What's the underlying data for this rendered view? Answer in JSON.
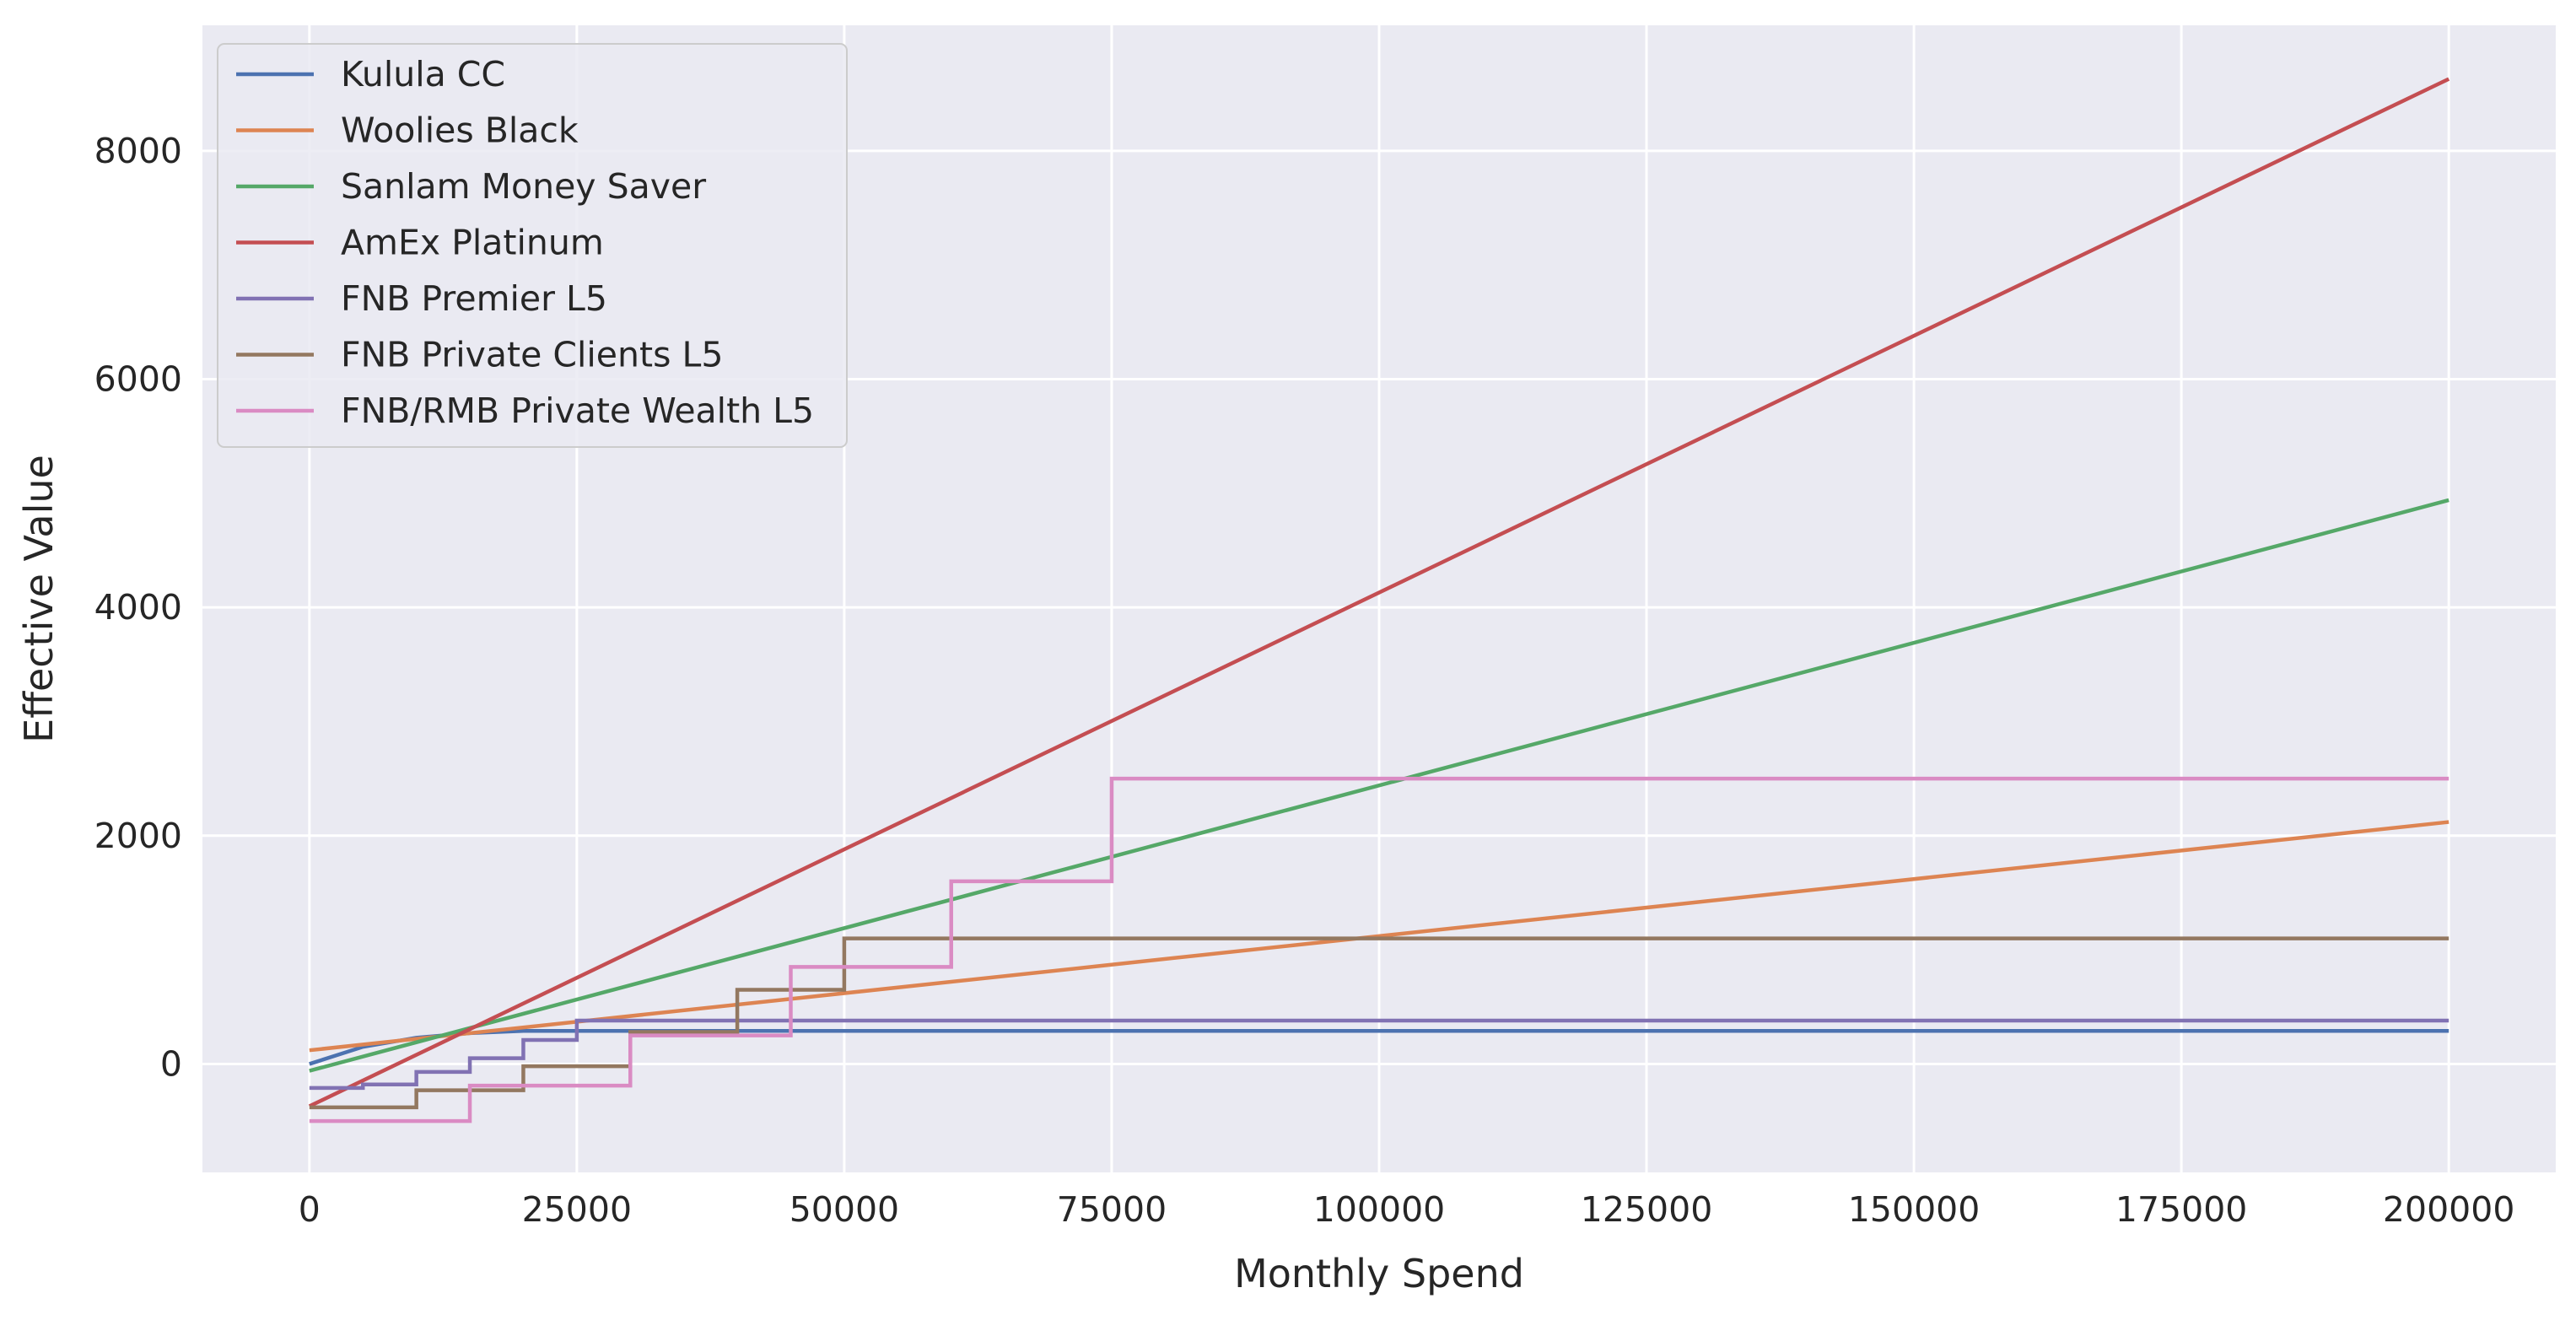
{
  "chart_data": {
    "type": "line",
    "title": "",
    "xlabel": "Monthly Spend",
    "ylabel": "Effective Value",
    "xlim": [
      -10000,
      210000
    ],
    "ylim": [
      -950,
      9100
    ],
    "xticks": [
      0,
      25000,
      50000,
      75000,
      100000,
      125000,
      150000,
      175000,
      200000
    ],
    "yticks": [
      0,
      2000,
      4000,
      6000,
      8000
    ],
    "grid": true,
    "background": "#eaeaf2",
    "legend_position": "top-left",
    "series": [
      {
        "name": "Kulula CC",
        "color": "#4c72b0",
        "points": [
          [
            0,
            0
          ],
          [
            5000,
            150
          ],
          [
            10000,
            230
          ],
          [
            15000,
            270
          ],
          [
            20000,
            290
          ],
          [
            200000,
            290
          ]
        ]
      },
      {
        "name": "Woolies Black",
        "color": "#dd8452",
        "points": [
          [
            0,
            120
          ],
          [
            200000,
            2120
          ]
        ]
      },
      {
        "name": "Sanlam Money Saver",
        "color": "#55a868",
        "points": [
          [
            0,
            -60
          ],
          [
            200000,
            4940
          ]
        ]
      },
      {
        "name": "AmEx Platinum",
        "color": "#c44e52",
        "points": [
          [
            0,
            -370
          ],
          [
            200000,
            8630
          ]
        ]
      },
      {
        "name": "FNB Premier L5",
        "color": "#8172b3",
        "points": [
          [
            0,
            -210
          ],
          [
            5000,
            -210
          ],
          [
            5000,
            -180
          ],
          [
            10000,
            -180
          ],
          [
            10000,
            -70
          ],
          [
            15000,
            -70
          ],
          [
            15000,
            50
          ],
          [
            20000,
            50
          ],
          [
            20000,
            210
          ],
          [
            25000,
            210
          ],
          [
            25000,
            380
          ],
          [
            200000,
            380
          ]
        ]
      },
      {
        "name": "FNB Private Clients L5",
        "color": "#937860",
        "points": [
          [
            0,
            -380
          ],
          [
            10000,
            -380
          ],
          [
            10000,
            -230
          ],
          [
            20000,
            -230
          ],
          [
            20000,
            -20
          ],
          [
            30000,
            -20
          ],
          [
            30000,
            280
          ],
          [
            40000,
            280
          ],
          [
            40000,
            650
          ],
          [
            50000,
            650
          ],
          [
            50000,
            1100
          ],
          [
            200000,
            1100
          ]
        ]
      },
      {
        "name": "FNB/RMB Private Wealth L5",
        "color": "#da8bc3",
        "points": [
          [
            0,
            -500
          ],
          [
            15000,
            -500
          ],
          [
            15000,
            -190
          ],
          [
            30000,
            -190
          ],
          [
            30000,
            250
          ],
          [
            45000,
            250
          ],
          [
            45000,
            850
          ],
          [
            60000,
            850
          ],
          [
            60000,
            1600
          ],
          [
            75000,
            1600
          ],
          [
            75000,
            2500
          ],
          [
            200000,
            2500
          ]
        ]
      }
    ]
  }
}
